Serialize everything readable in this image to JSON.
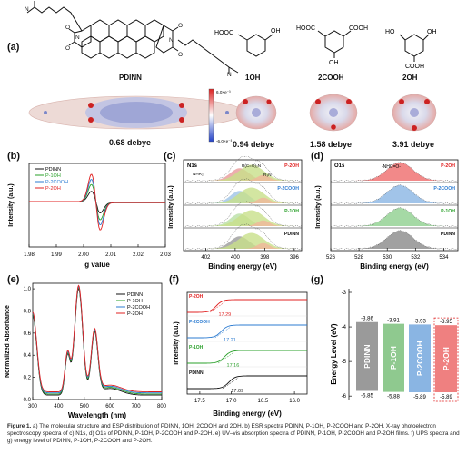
{
  "panel_a": {
    "label": "(a)",
    "molecules": [
      "PDINN",
      "1OH",
      "2COOH",
      "2OH"
    ],
    "dipoles": [
      "0.68 debye",
      "0.94 debye",
      "1.58 debye",
      "3.91 debye"
    ],
    "colorbar": {
      "max": "6.0×e⁻³",
      "min": "-6.0×e⁻³"
    },
    "atoms": {
      "N": "N",
      "O": "O",
      "HO": "HO",
      "OH": "OH",
      "HOOC": "HOOC",
      "COOH": "COOH"
    }
  },
  "chart_data": [
    {
      "panel": "(b)",
      "type": "line",
      "title": "",
      "xlabel": "g value",
      "ylabel": "Intensity (a.u.)",
      "xlim": [
        1.98,
        2.03
      ],
      "xticks": [
        "1.98",
        "1.99",
        "2.00",
        "2.01",
        "2.02",
        "2.03"
      ],
      "legend": [
        "PDINN",
        "P-1OH",
        "P-2COOH",
        "P-2OH"
      ],
      "legend_position": "top-left",
      "series_colors": [
        "#111111",
        "#2aa02a",
        "#2b7bd1",
        "#e02020"
      ]
    },
    {
      "panel": "(c)",
      "type": "area",
      "title": "N1s",
      "xlabel": "Binding energy (eV)",
      "ylabel": "Intensity (a.u.)",
      "xlim": [
        403.5,
        395.5
      ],
      "xticks": [
        "396",
        "398",
        "400",
        "402"
      ],
      "stack_labels": [
        "P-2OH",
        "P-2COOH",
        "P-1OH",
        "PDINN"
      ],
      "peak_labels": [
        "NHR₂",
        "R(C=O)₂N",
        "R₃N"
      ]
    },
    {
      "panel": "(d)",
      "type": "area",
      "title": "O1s",
      "xlabel": "Binding energy (eV)",
      "ylabel": "Intensity (a.u.)",
      "xlim": [
        526,
        535
      ],
      "xticks": [
        "526",
        "528",
        "530",
        "532",
        "534"
      ],
      "stack_labels": [
        "P-2OH",
        "P-2COOH",
        "P-1OH",
        "PDINN"
      ],
      "peak_labels": [
        "-NHC=O-"
      ]
    },
    {
      "panel": "(e)",
      "type": "line",
      "title": "",
      "xlabel": "Wavelength (nm)",
      "ylabel": "Normalized Absorbance",
      "xlim": [
        300,
        800
      ],
      "ylim": [
        0.0,
        1.05
      ],
      "xticks": [
        "300",
        "400",
        "500",
        "600",
        "700",
        "800"
      ],
      "yticks": [
        "0.0",
        "0.2",
        "0.4",
        "0.6",
        "0.8",
        "1.0"
      ],
      "legend": [
        "PDINN",
        "P-1OH",
        "P-2COOH",
        "P-2OH"
      ],
      "legend_position": "top-right",
      "series_colors": [
        "#111111",
        "#2aa02a",
        "#2b7bd1",
        "#e02020"
      ]
    },
    {
      "panel": "(f)",
      "type": "line",
      "title": "",
      "xlabel": "Binding energy (eV)",
      "ylabel": "Intensity (a.u.)",
      "xlim": [
        17.7,
        15.8
      ],
      "xticks": [
        "17.5",
        "17.0",
        "16.5",
        "16.0"
      ],
      "stack_labels": [
        "P-2OH",
        "P-2COOH",
        "P-1OH",
        "PDINN"
      ],
      "cutoffs": [
        17.29,
        17.21,
        17.16,
        17.09
      ],
      "cutoff_labels": [
        "17.29",
        "17.21",
        "17.16",
        "17.09"
      ],
      "series_colors": [
        "#e02020",
        "#2b7bd1",
        "#2aa02a",
        "#111111"
      ]
    },
    {
      "panel": "(g)",
      "type": "bar",
      "title": "",
      "ylabel": "Energy Level (eV)",
      "ylim": [
        -6.1,
        -3.0
      ],
      "yticks": [
        "-3",
        "-4",
        "-5",
        "-6"
      ],
      "categories": [
        "PDINN",
        "P-1OH",
        "P-2COOH",
        "P-2OH"
      ],
      "top_values": [
        -3.86,
        -3.91,
        -3.93,
        -3.95
      ],
      "bottom_values": [
        -5.85,
        -5.88,
        -5.89,
        -5.89
      ],
      "top_labels": [
        "-3.86",
        "-3.91",
        "-3.93",
        "-3.95"
      ],
      "bottom_labels": [
        "-5.85",
        "-5.88",
        "-5.89",
        "-5.89"
      ],
      "colors": [
        "#9a9a9a",
        "#8fc98f",
        "#8ab5e3",
        "#ef8080"
      ]
    }
  ],
  "caption": {
    "bold": "Figure 1.",
    "text": " a) The molecular structure and ESP distribution of PDINN, 1OH, 2COOH and 2OH. b) ESR spectra PDINN, P-1OH, P-2COOH and P-2OH. X-ray photoelectron spectroscopy spectra of c) N1s, d) O1s of PDINN, P-1OH, P-2COOH and P-2OH. e) UV–vis absorption spectra of PDINN, P-1OH, P-2COOH and P-2OH films. f) UPS spectra and g) energy level of PDINN, P-1OH, P-2COOH and P-2OH."
  }
}
